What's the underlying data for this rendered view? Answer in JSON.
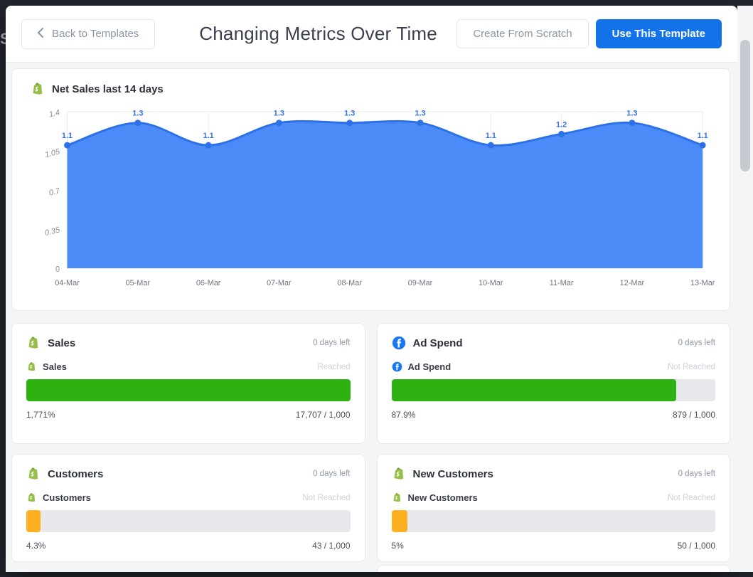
{
  "colors": {
    "accent_blue": "#1372e8",
    "progress_green": "#2eb212",
    "progress_orange": "#fdb022",
    "chart_line": "#2d71e8",
    "chart_fill": "#4a8bf7",
    "chart_point": "#2d71e8"
  },
  "background": {
    "clipped_text": "S"
  },
  "header": {
    "back_button": "Back to Templates",
    "title": "Changing Metrics Over Time",
    "create_from_scratch_button": "Create From Scratch",
    "use_this_template_button": "Use This Template"
  },
  "chart_card": {
    "icon": "shopify",
    "title": "Net Sales last 14 days"
  },
  "chart_data": {
    "type": "area",
    "title": "Net Sales last 14 days",
    "x": [
      "04-Mar",
      "05-Mar",
      "06-Mar",
      "07-Mar",
      "08-Mar",
      "09-Mar",
      "10-Mar",
      "11-Mar",
      "12-Mar",
      "13-Mar"
    ],
    "values": [
      1.1,
      1.3,
      1.1,
      1.3,
      1.3,
      1.3,
      1.1,
      1.2,
      1.3,
      1.1
    ],
    "point_labels": [
      "1.1",
      "1.3",
      "1.1",
      "1.3",
      "1.3",
      "1.3",
      "1.1",
      "1.2",
      "1.3",
      "1.1"
    ],
    "y_ticks": [
      0,
      0.35,
      0.7,
      1.05,
      1.4
    ],
    "y_tick_labels": [
      "0",
      "0.35",
      "0.7",
      "1.05",
      "1.4"
    ],
    "ylim": [
      0,
      1.4
    ],
    "grid": true,
    "legend": false
  },
  "goal_cards": [
    {
      "icon": "shopify",
      "title": "Sales",
      "days_left": "0 days left",
      "metric_label": "Sales",
      "status": "Reached",
      "progress_percent": 100,
      "bar_color": "progress_green",
      "percent_label": "1,771%",
      "target_label": "17,707 / 1,000"
    },
    {
      "icon": "facebook",
      "title": "Ad Spend",
      "days_left": "0 days left",
      "metric_label": "Ad Spend",
      "status": "Not Reached",
      "progress_percent": 87.9,
      "bar_color": "progress_green",
      "percent_label": "87.9%",
      "target_label": "879 / 1,000"
    },
    {
      "icon": "shopify",
      "title": "Customers",
      "days_left": "0 days left",
      "metric_label": "Customers",
      "status": "Not Reached",
      "progress_percent": 4.3,
      "bar_color": "progress_orange",
      "percent_label": "4.3%",
      "target_label": "43 / 1,000"
    },
    {
      "icon": "shopify",
      "title": "New Customers",
      "days_left": "0 days left",
      "metric_label": "New Customers",
      "status": "Not Reached",
      "progress_percent": 5,
      "bar_color": "progress_orange",
      "percent_label": "5%",
      "target_label": "50 / 1,000"
    }
  ]
}
